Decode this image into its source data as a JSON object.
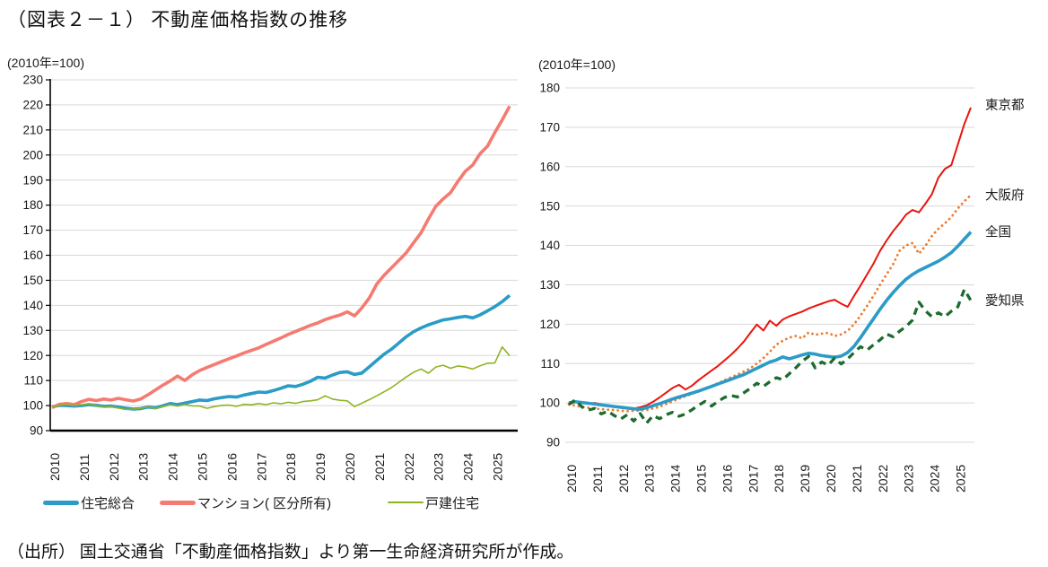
{
  "page": {
    "title": "（図表２－１） 不動産価格指数の推移",
    "source": "（出所） 国土交通省「不動産価格指数」より第一生命経済研究所が作成。"
  },
  "chart_data": [
    {
      "type": "line",
      "panel": "left",
      "unit_label": "(2010年=100)",
      "ylim": [
        90,
        230
      ],
      "ytick_step": 10,
      "grid": true,
      "legend_position": "bottom",
      "x_start": 2010.0,
      "x_step": 0.25,
      "x_tick_labels": [
        "2010",
        "2011",
        "2012",
        "2013",
        "2014",
        "2015",
        "2016",
        "2017",
        "2018",
        "2019",
        "2020",
        "2021",
        "2022",
        "2023",
        "2024",
        "2025"
      ],
      "series": [
        {
          "name": "住宅総合",
          "color": "#2B9BC7",
          "style": "solid-thick",
          "values": [
            99.5,
            100.1,
            100.0,
            99.8,
            100.0,
            100.4,
            100.1,
            99.7,
            99.8,
            99.4,
            98.9,
            98.6,
            98.8,
            99.4,
            99.1,
            99.9,
            100.8,
            100.4,
            101.0,
            101.6,
            102.2,
            102.0,
            102.7,
            103.2,
            103.6,
            103.4,
            104.2,
            104.8,
            105.4,
            105.2,
            106.0,
            106.9,
            107.9,
            107.6,
            108.5,
            109.7,
            111.3,
            111.0,
            112.2,
            113.2,
            113.5,
            112.4,
            113.0,
            115.5,
            118.0,
            120.5,
            122.5,
            125.0,
            127.5,
            129.5,
            131.0,
            132.2,
            133.2,
            134.2,
            134.6,
            135.2,
            135.6,
            135.0,
            136.2,
            137.8,
            139.5,
            141.5,
            144.0
          ]
        },
        {
          "name": "マンション( 区分所有)",
          "color": "#F57B71",
          "style": "solid-thick",
          "values": [
            99.2,
            100.5,
            100.8,
            100.4,
            101.6,
            102.5,
            102.0,
            102.6,
            102.2,
            102.9,
            102.3,
            101.8,
            102.6,
            104.3,
            106.2,
            108.1,
            109.8,
            111.8,
            110.0,
            112.3,
            114.0,
            115.2,
            116.4,
            117.6,
            118.7,
            119.8,
            121.0,
            122.0,
            123.0,
            124.4,
            125.7,
            127.0,
            128.4,
            129.6,
            130.8,
            132.0,
            133.0,
            134.3,
            135.3,
            136.1,
            137.4,
            135.8,
            139.0,
            143.0,
            148.5,
            152.0,
            155.0,
            158.0,
            161.0,
            165.0,
            169.0,
            174.5,
            179.5,
            182.5,
            185.0,
            189.5,
            193.5,
            196.0,
            200.5,
            203.5,
            209.0,
            214.0,
            219.5
          ]
        },
        {
          "name": "戸建住宅",
          "color": "#8FB421",
          "style": "solid-thin",
          "values": [
            99.3,
            100.2,
            100.4,
            100.0,
            100.3,
            100.8,
            100.0,
            99.4,
            99.6,
            99.0,
            98.4,
            98.6,
            98.9,
            99.5,
            98.8,
            99.6,
            100.3,
            99.8,
            100.4,
            99.9,
            99.8,
            98.9,
            99.6,
            100.1,
            100.2,
            99.7,
            100.5,
            100.3,
            100.8,
            100.4,
            101.1,
            100.7,
            101.3,
            100.9,
            101.6,
            101.9,
            102.3,
            103.9,
            102.6,
            102.1,
            101.9,
            99.6,
            101.0,
            102.4,
            103.9,
            105.5,
            107.2,
            109.3,
            111.4,
            113.3,
            114.6,
            112.9,
            115.4,
            116.1,
            114.9,
            115.8,
            115.4,
            114.6,
            115.9,
            116.9,
            117.0,
            123.4,
            119.9
          ]
        }
      ]
    },
    {
      "type": "line",
      "panel": "right",
      "unit_label": "(2010年=100)",
      "ylim": [
        90,
        180
      ],
      "ytick_step": 10,
      "grid": true,
      "legend_position": "line-end-labels",
      "x_start": 2010.0,
      "x_step": 0.25,
      "x_tick_labels": [
        "2010",
        "2011",
        "2012",
        "2013",
        "2014",
        "2015",
        "2016",
        "2017",
        "2018",
        "2019",
        "2020",
        "2021",
        "2022",
        "2023",
        "2024",
        "2025"
      ],
      "series": [
        {
          "name": "東京都",
          "color": "#E9150D",
          "style": "solid-medium",
          "values": [
            100.0,
            100.4,
            100.1,
            99.8,
            100.0,
            99.6,
            99.3,
            99.1,
            98.9,
            98.7,
            98.6,
            98.9,
            99.4,
            100.3,
            101.4,
            102.6,
            103.8,
            104.6,
            103.4,
            104.4,
            105.8,
            107.0,
            108.2,
            109.4,
            110.8,
            112.2,
            113.8,
            115.6,
            117.8,
            119.9,
            118.4,
            120.9,
            119.6,
            121.2,
            122.0,
            122.6,
            123.2,
            124.0,
            124.6,
            125.2,
            125.8,
            126.2,
            125.2,
            124.4,
            127.2,
            129.8,
            132.6,
            135.4,
            138.6,
            141.2,
            143.6,
            145.6,
            147.8,
            149.0,
            148.4,
            150.6,
            153.0,
            157.2,
            159.4,
            160.4,
            165.6,
            170.8,
            175.0
          ]
        },
        {
          "name": "大阪府",
          "color": "#ED7D31",
          "style": "dotted",
          "values": [
            99.6,
            99.3,
            99.0,
            98.8,
            98.6,
            98.4,
            98.3,
            98.2,
            98.0,
            97.9,
            98.0,
            98.1,
            98.2,
            98.6,
            99.0,
            99.7,
            100.4,
            101.1,
            101.7,
            102.3,
            103.0,
            103.6,
            104.3,
            105.0,
            105.8,
            106.5,
            107.2,
            108.0,
            108.8,
            110.0,
            111.4,
            113.0,
            114.8,
            115.8,
            116.6,
            117.0,
            116.4,
            117.9,
            117.3,
            117.6,
            117.8,
            117.0,
            117.4,
            118.3,
            120.0,
            122.2,
            124.6,
            127.2,
            130.0,
            132.6,
            135.2,
            138.6,
            140.0,
            140.6,
            137.9,
            139.9,
            142.4,
            144.2,
            145.6,
            147.2,
            149.4,
            151.2,
            152.8
          ]
        },
        {
          "name": "全国",
          "color": "#2B9BC7",
          "style": "solid-thick",
          "values": [
            100.0,
            100.3,
            100.1,
            99.9,
            99.7,
            99.5,
            99.3,
            99.1,
            98.9,
            98.7,
            98.5,
            98.4,
            98.8,
            99.3,
            99.8,
            100.4,
            101.0,
            101.5,
            102.0,
            102.5,
            103.0,
            103.6,
            104.2,
            104.8,
            105.4,
            106.0,
            106.6,
            107.2,
            108.0,
            108.8,
            109.6,
            110.4,
            110.9,
            111.7,
            111.2,
            111.7,
            112.2,
            112.6,
            112.4,
            112.0,
            111.8,
            111.6,
            111.9,
            112.8,
            114.4,
            116.6,
            119.0,
            121.4,
            123.8,
            126.0,
            128.0,
            129.8,
            131.4,
            132.6,
            133.6,
            134.4,
            135.2,
            136.0,
            137.0,
            138.2,
            139.8,
            141.6,
            143.4
          ]
        },
        {
          "name": "愛知県",
          "color": "#1D6B2E",
          "style": "dashed",
          "values": [
            99.6,
            100.8,
            99.0,
            98.2,
            98.6,
            97.2,
            97.9,
            96.8,
            95.9,
            97.0,
            95.4,
            97.3,
            94.9,
            96.8,
            96.0,
            97.0,
            97.6,
            96.6,
            97.2,
            98.3,
            99.4,
            100.4,
            99.2,
            100.4,
            101.4,
            101.9,
            101.5,
            102.6,
            103.7,
            105.0,
            104.2,
            105.4,
            106.4,
            105.9,
            107.4,
            108.9,
            110.6,
            111.8,
            108.9,
            110.4,
            109.6,
            111.4,
            109.9,
            111.2,
            112.8,
            114.3,
            113.4,
            114.8,
            116.0,
            117.5,
            116.8,
            118.2,
            119.4,
            121.0,
            125.6,
            123.4,
            121.9,
            122.9,
            121.9,
            123.3,
            124.4,
            128.8,
            126.0
          ]
        }
      ]
    }
  ]
}
